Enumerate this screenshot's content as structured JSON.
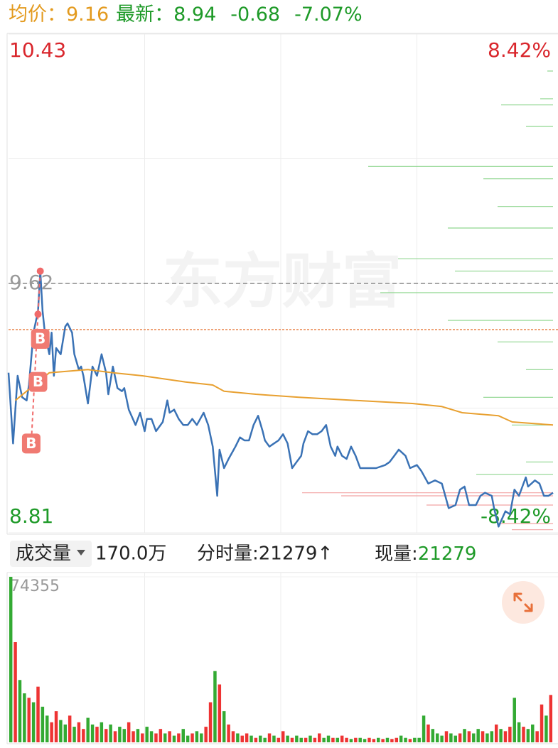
{
  "chart_data": {
    "type": "intraday",
    "header": {
      "avg_label": "均价：",
      "avg": "9.16",
      "latest_label": "最新：",
      "latest": "8.94",
      "change": "-0.68",
      "change_pct": "-7.07%"
    },
    "watermark": "东方财富",
    "xlim": [
      0,
      240
    ],
    "ylim": [
      8.81,
      10.43
    ],
    "yticks": [
      10.43,
      9.62,
      8.81
    ],
    "prev_close": 9.62,
    "cost_line": 9.47,
    "y2lim": [
      -8.42,
      8.42
    ],
    "y2ticks": [
      {
        "value": 8.42,
        "label": "8.42%"
      },
      {
        "value": -8.42,
        "label": "-8.42%"
      }
    ],
    "series": [
      {
        "color": "#3a72b5",
        "x": [
          0,
          2,
          4,
          6,
          8,
          9,
          11,
          13,
          14,
          15,
          16,
          18,
          19,
          20,
          21,
          23,
          25,
          26,
          28,
          29,
          31,
          32,
          33,
          35,
          37,
          39,
          41,
          43,
          44,
          46,
          48,
          50,
          51,
          53,
          56,
          58,
          60,
          61,
          63,
          65,
          68,
          70,
          71,
          73,
          75,
          77,
          79,
          81,
          83,
          86,
          88,
          90,
          92,
          93,
          95,
          97,
          100,
          102,
          104,
          106,
          108,
          110,
          112,
          113,
          115,
          117,
          119,
          121,
          123,
          125,
          127,
          129,
          130,
          132,
          134,
          136,
          138,
          140,
          142,
          144,
          145,
          147,
          149,
          151,
          153,
          155,
          159,
          162,
          166,
          168,
          170,
          172,
          175,
          177,
          180,
          182,
          185,
          188,
          191,
          194,
          197,
          199,
          201,
          203,
          206,
          208,
          210,
          213,
          214,
          216,
          219,
          221,
          223,
          225,
          228,
          229,
          232,
          234,
          236,
          238,
          240
        ],
        "values": [
          9.33,
          9.1,
          9.32,
          9.25,
          9.24,
          9.29,
          9.46,
          9.53,
          9.66,
          9.53,
          9.46,
          9.39,
          9.46,
          9.32,
          9.41,
          9.39,
          9.48,
          9.49,
          9.46,
          9.39,
          9.34,
          9.35,
          9.32,
          9.23,
          9.35,
          9.32,
          9.39,
          9.33,
          9.26,
          9.35,
          9.28,
          9.27,
          9.28,
          9.21,
          9.16,
          9.2,
          9.14,
          9.18,
          9.18,
          9.14,
          9.17,
          9.24,
          9.2,
          9.21,
          9.18,
          9.16,
          9.16,
          9.18,
          9.16,
          9.2,
          9.16,
          9.09,
          8.93,
          9.08,
          9.02,
          9.05,
          9.09,
          9.12,
          9.11,
          9.11,
          9.16,
          9.19,
          9.14,
          9.11,
          9.09,
          9.1,
          9.11,
          9.13,
          9.1,
          9.02,
          9.04,
          9.06,
          9.1,
          9.14,
          9.13,
          9.13,
          9.14,
          9.16,
          9.09,
          9.06,
          9.09,
          9.06,
          9.05,
          9.09,
          9.06,
          9.02,
          9.02,
          9.02,
          9.03,
          9.04,
          9.06,
          9.08,
          9.06,
          9.02,
          9.03,
          9.01,
          8.97,
          8.98,
          8.97,
          8.89,
          8.9,
          8.95,
          8.96,
          8.9,
          8.9,
          8.93,
          8.94,
          8.93,
          8.89,
          8.83,
          8.88,
          8.87,
          8.95,
          8.93,
          8.99,
          8.96,
          8.98,
          8.97,
          8.93,
          8.93,
          8.94
        ]
      },
      {
        "color": "#e8a030",
        "x": [
          3,
          18,
          35,
          46,
          59,
          78,
          90,
          95,
          109,
          128,
          153,
          178,
          191,
          200,
          216,
          222,
          240
        ],
        "values": [
          9.24,
          9.33,
          9.34,
          9.33,
          9.32,
          9.3,
          9.29,
          9.27,
          9.26,
          9.25,
          9.24,
          9.23,
          9.22,
          9.2,
          9.19,
          9.17,
          9.16
        ]
      }
    ],
    "dots": {
      "color": "#f06a6a",
      "x": [
        14,
        13
      ],
      "values": [
        9.66,
        9.52
      ]
    },
    "markers": [
      {
        "label": "B",
        "x": 10,
        "y": 9.1
      },
      {
        "label": "B",
        "x": 13,
        "y": 9.3
      },
      {
        "label": "B",
        "x": 14,
        "y": 9.44
      }
    ],
    "profile": {
      "xlim": [
        0,
        400
      ],
      "prices": [
        10.31,
        10.22,
        10.2,
        10.13,
        10.0,
        9.96,
        9.87,
        9.8,
        9.7,
        9.66,
        9.59,
        9.5,
        9.43,
        9.34,
        9.25,
        9.16,
        9.04,
        9.0,
        8.94,
        8.93,
        8.9,
        8.84,
        8.82
      ],
      "values": [
        8,
        18,
        73,
        38,
        260,
        98,
        78,
        148,
        218,
        138,
        243,
        148,
        78,
        38,
        98,
        58,
        38,
        108,
        353,
        298,
        178,
        78,
        58
      ],
      "colors": [
        "#8fd68f",
        "#8fd68f",
        "#8fd68f",
        "#8fd68f",
        "#8fd68f",
        "#8fd68f",
        "#8fd68f",
        "#8fd68f",
        "#8fd68f",
        "#8fd68f",
        "#8fd68f",
        "#8fd68f",
        "#8fd68f",
        "#8fd68f",
        "#8fd68f",
        "#8fd68f",
        "#8fd68f",
        "#8fd68f",
        "#f2a5a5",
        "#f2a5a5",
        "#f2a5a5",
        "#f2a5a5",
        "#f2a5a5"
      ]
    },
    "volume": {
      "ylim": [
        0,
        74355
      ],
      "yticks": [
        74355
      ],
      "values": [
        74355,
        45000,
        28000,
        22000,
        20000,
        18000,
        25000,
        16000,
        12000,
        9000,
        14000,
        10000,
        8000,
        12000,
        7000,
        9000,
        6000,
        11000,
        8000,
        7000,
        9000,
        6000,
        8000,
        5000,
        7000,
        6000,
        9000,
        5000,
        6000,
        4000,
        7000,
        5000,
        4000,
        6000,
        4000,
        5000,
        3000,
        4000,
        6000,
        3000,
        4000,
        5000,
        4000,
        7000,
        18000,
        32000,
        26000,
        14000,
        8000,
        5000,
        4000,
        3000,
        4000,
        3000,
        2000,
        3000,
        2000,
        4000,
        3000,
        2000,
        5000,
        3000,
        2000,
        3000,
        2000,
        2000,
        3000,
        2000,
        4000,
        2000,
        3000,
        2000,
        2000,
        3000,
        2000,
        1500,
        2000,
        2000,
        1500,
        2000,
        1500,
        2000,
        1500,
        2000,
        1500,
        2000,
        3000,
        2000,
        1500,
        2000,
        2000,
        12000,
        8000,
        6000,
        4000,
        3000,
        5000,
        4000,
        3000,
        4000,
        6000,
        5000,
        4000,
        6000,
        5000,
        4000,
        5000,
        8000,
        6000,
        5000,
        7000,
        20000,
        9000,
        7000,
        6000,
        8000,
        5000,
        17000,
        12000,
        21279
      ],
      "colors": [
        "#3a3",
        "#e33",
        "#3a3",
        "#3a3",
        "#e33",
        "#3a3",
        "#e33",
        "#3a3",
        "#3a3",
        "#e33",
        "#e33",
        "#3a3",
        "#3a3",
        "#e33",
        "#3a3",
        "#e33",
        "#e33",
        "#3a3",
        "#3a3",
        "#e33",
        "#3a3",
        "#e33",
        "#3a3",
        "#e33",
        "#3a3",
        "#3a3",
        "#e33",
        "#e33",
        "#3a3",
        "#e33",
        "#3a3",
        "#3a3",
        "#e33",
        "#e33",
        "#3a3",
        "#e33",
        "#3a3",
        "#e33",
        "#3a3",
        "#3a3",
        "#e33",
        "#3a3",
        "#3a3",
        "#e33",
        "#e33",
        "#3a3",
        "#e33",
        "#3a3",
        "#e33",
        "#e33",
        "#3a3",
        "#e33",
        "#e33",
        "#3a3",
        "#e33",
        "#3a3",
        "#3a3",
        "#e33",
        "#3a3",
        "#e33",
        "#e33",
        "#3a3",
        "#e33",
        "#3a3",
        "#3a3",
        "#e33",
        "#3a3",
        "#e33",
        "#e33",
        "#3a3",
        "#3a3",
        "#e33",
        "#3a3",
        "#e33",
        "#e33",
        "#3a3",
        "#e33",
        "#3a3",
        "#3a3",
        "#e33",
        "#e33",
        "#3a3",
        "#e33",
        "#3a3",
        "#e33",
        "#e33",
        "#3a3",
        "#3a3",
        "#e33",
        "#3a3",
        "#3a3",
        "#3a3",
        "#e33",
        "#3a3",
        "#3a3",
        "#3a3",
        "#e33",
        "#3a3",
        "#3a3",
        "#e33",
        "#3a3",
        "#e33",
        "#3a3",
        "#3a3",
        "#e33",
        "#3a3",
        "#3a3",
        "#e33",
        "#3a3",
        "#e33",
        "#e33",
        "#3a3",
        "#3a3",
        "#e33",
        "#3a3",
        "#3a3",
        "#e33",
        "#e33",
        "#3a3",
        "#e33"
      ]
    },
    "volume_bar": {
      "selector": "成交量",
      "total": "170.0万",
      "tick_volume": "分时量:21279↑",
      "current_label": "现量:",
      "current": "21279"
    }
  }
}
